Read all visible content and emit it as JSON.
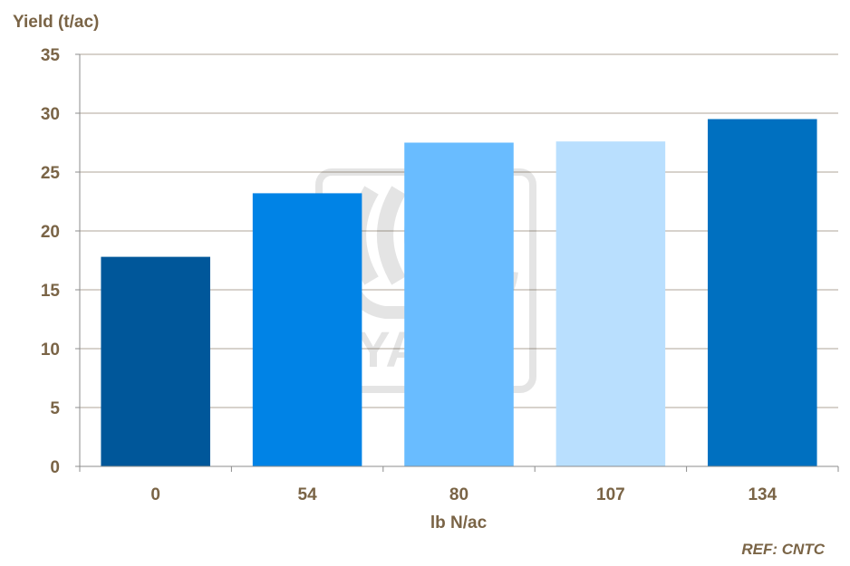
{
  "chart_data": {
    "type": "bar",
    "ylabel": "Yield (t/ac)",
    "xlabel": "lb N/ac",
    "categories": [
      "0",
      "54",
      "80",
      "107",
      "134"
    ],
    "values": [
      17.8,
      23.2,
      27.5,
      27.6,
      29.5
    ],
    "bar_colors": [
      "#00579a",
      "#0083e6",
      "#69bcff",
      "#b9dffe",
      "#0070c0"
    ],
    "ylim": [
      0,
      35
    ],
    "yticks": [
      "0",
      "5",
      "10",
      "15",
      "20",
      "25",
      "30",
      "35"
    ],
    "grid": true,
    "legend": "none",
    "annotation": "REF: CNTC",
    "watermark": "YARA"
  }
}
